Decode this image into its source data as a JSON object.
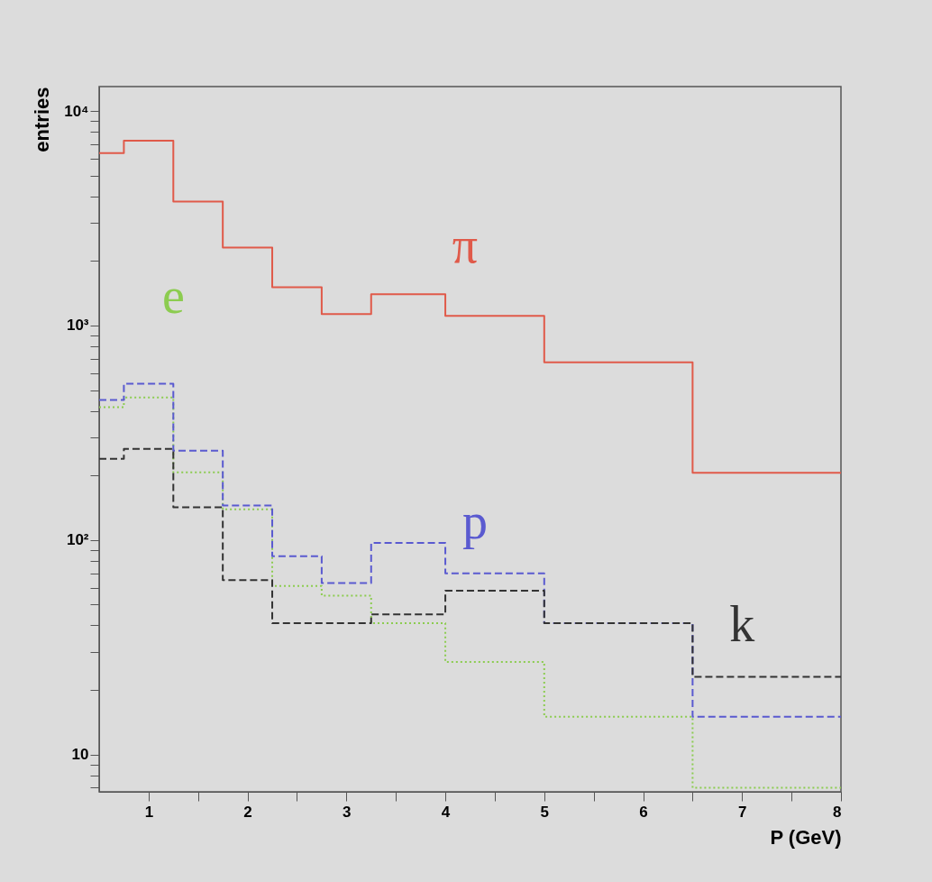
{
  "chart_data": {
    "type": "histogram",
    "xlabel": "P (GeV)",
    "ylabel": "entries",
    "log": "y",
    "bins": [
      0.5,
      0.75,
      1.25,
      1.75,
      2.25,
      2.75,
      3.25,
      4,
      5,
      6.5,
      8
    ],
    "xlim": [
      0.5,
      8
    ],
    "xticks": [
      1,
      {
        "value": 1.5,
        "label": null
      },
      2,
      {
        "value": 2.5,
        "label": null
      },
      3,
      {
        "value": 3.5,
        "label": null
      },
      4,
      {
        "value": 4.5,
        "label": null
      },
      5,
      {
        "value": 5.5,
        "label": null
      },
      6,
      {
        "value": 6.5,
        "label": null
      },
      7,
      {
        "value": 7.5,
        "label": null
      },
      8
    ],
    "ylim": [
      6.7,
      13000
    ],
    "yticks": [
      {
        "value": 7,
        "label": null
      },
      {
        "value": 8,
        "label": null
      },
      {
        "value": 9,
        "label": null
      },
      10,
      {
        "value": 20,
        "label": null
      },
      {
        "value": 30,
        "label": null
      },
      {
        "value": 40,
        "label": null
      },
      {
        "value": 50,
        "label": null
      },
      {
        "value": 60,
        "label": null
      },
      {
        "value": 70,
        "label": null
      },
      {
        "value": 80,
        "label": null
      },
      {
        "value": 90,
        "label": null
      },
      {
        "value": 100,
        "label": "10²"
      },
      {
        "value": 200,
        "label": null
      },
      {
        "value": 300,
        "label": null
      },
      {
        "value": 400,
        "label": null
      },
      {
        "value": 500,
        "label": null
      },
      {
        "value": 600,
        "label": null
      },
      {
        "value": 700,
        "label": null
      },
      {
        "value": 800,
        "label": null
      },
      {
        "value": 900,
        "label": null
      },
      {
        "value": 1000,
        "label": "10³"
      },
      {
        "value": 2000,
        "label": null
      },
      {
        "value": 3000,
        "label": null
      },
      {
        "value": 4000,
        "label": null
      },
      {
        "value": 5000,
        "label": null
      },
      {
        "value": 6000,
        "label": null
      },
      {
        "value": 7000,
        "label": null
      },
      {
        "value": 8000,
        "label": null
      },
      {
        "value": 9000,
        "label": null
      },
      {
        "value": 10000,
        "label": "10⁴"
      }
    ],
    "series": [
      {
        "name": "π",
        "color": "#e05a4a",
        "line_style": "solid",
        "values": [
          6360,
          7280,
          3780,
          2310,
          1510,
          1130,
          1400,
          1110,
          673,
          206
        ]
      },
      {
        "name": "e",
        "color": "#8ccc50",
        "line_style": "dotted",
        "values": [
          416,
          462,
          207,
          139,
          61,
          55,
          41,
          27,
          15,
          7
        ]
      },
      {
        "name": "p",
        "color": "#5a5ad0",
        "line_style": "dashed",
        "values": [
          450,
          535,
          261,
          145,
          84,
          63,
          97,
          70,
          41,
          15
        ]
      },
      {
        "name": "k",
        "color": "#333333",
        "line_style": "dashed",
        "values": [
          239,
          266,
          142,
          65,
          41,
          41,
          45,
          58,
          41,
          23
        ]
      }
    ]
  }
}
